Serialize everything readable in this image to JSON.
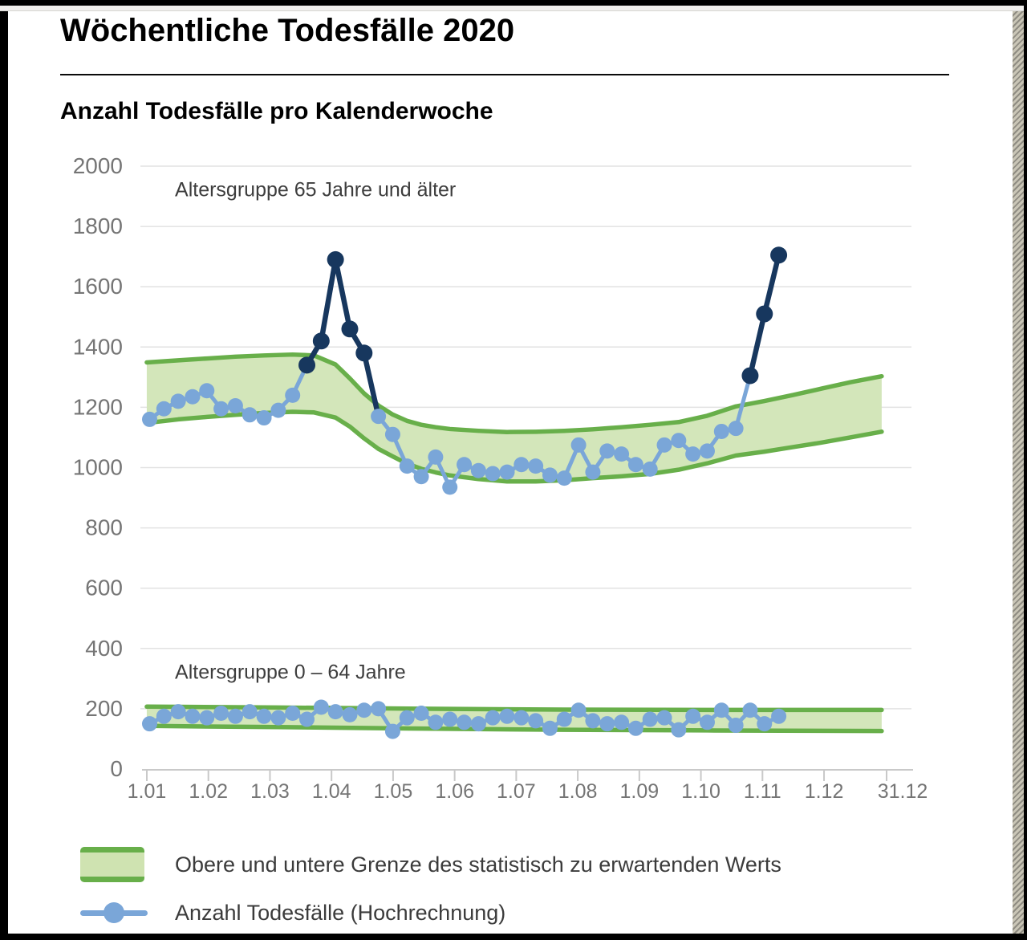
{
  "header": {
    "title": "Wöchentliche Todesfälle 2020",
    "subtitle": "Anzahl Todesfälle pro Kalenderwoche"
  },
  "legend": {
    "items": [
      {
        "swatch": "band",
        "label": "Obere und untere Grenze des statistisch zu erwartenden Werts"
      },
      {
        "swatch": "line-with-dot",
        "label": "Anzahl Todesfälle (Hochrechnung)"
      }
    ]
  },
  "chart_data": {
    "type": "line",
    "title": "Anzahl Todesfälle pro Kalenderwoche",
    "xlabel": "",
    "ylabel": "",
    "ylim": [
      0,
      2000
    ],
    "y_ticks": [
      0,
      200,
      400,
      600,
      800,
      1000,
      1200,
      1400,
      1600,
      1800,
      2000
    ],
    "x_tick_labels": [
      "1.01",
      "1.02",
      "1.03",
      "1.04",
      "1.05",
      "1.06",
      "1.07",
      "1.08",
      "1.09",
      "1.10",
      "1.11",
      "1.12",
      "31.12"
    ],
    "grid": true,
    "legend_position": "bottom",
    "annotations": [
      {
        "text": "Altersgruppe 65 Jahre und älter",
        "week": 2.77,
        "value": 1900
      },
      {
        "text": "Altersgruppe 0 – 64 Jahre",
        "week": 2.77,
        "value": 300
      }
    ],
    "series": [
      {
        "name": "Anzahl Todesfälle (Hochrechnung) – Altersgruppe 65 Jahre und älter",
        "weeks_start": 1,
        "values": [
          1160,
          1195,
          1220,
          1235,
          1255,
          1195,
          1205,
          1175,
          1165,
          1190,
          1240,
          1340,
          1420,
          1690,
          1460,
          1380,
          1170,
          1110,
          1005,
          970,
          1035,
          935,
          1010,
          990,
          980,
          985,
          1010,
          1005,
          975,
          965,
          1075,
          985,
          1055,
          1045,
          1010,
          995,
          1075,
          1090,
          1045,
          1055,
          1120,
          1130,
          1305,
          1510,
          1705
        ],
        "dark_weeks": [
          12,
          13,
          14,
          15,
          16,
          43,
          44,
          45
        ]
      },
      {
        "name": "Anzahl Todesfälle (Hochrechnung) – Altersgruppe 0 – 64 Jahre",
        "weeks_start": 1,
        "values": [
          150,
          175,
          190,
          175,
          170,
          185,
          175,
          190,
          175,
          170,
          185,
          165,
          205,
          190,
          180,
          195,
          200,
          125,
          170,
          185,
          155,
          165,
          155,
          150,
          170,
          175,
          170,
          160,
          135,
          165,
          195,
          160,
          150,
          155,
          135,
          165,
          170,
          130,
          175,
          155,
          195,
          145,
          195,
          150,
          175
        ],
        "dark_weeks": []
      }
    ],
    "bands": [
      {
        "name": "Erwartungsbereich Altersgruppe 65 Jahre und älter",
        "anchors": [
          [
            0.8,
            1148,
            1349
          ],
          [
            3,
            1160,
            1356
          ],
          [
            5,
            1168,
            1362
          ],
          [
            7,
            1175,
            1368
          ],
          [
            9,
            1181,
            1372
          ],
          [
            11,
            1185,
            1375
          ],
          [
            12.5,
            1183,
            1372
          ],
          [
            14,
            1166,
            1342
          ],
          [
            15,
            1136,
            1296
          ],
          [
            16,
            1097,
            1246
          ],
          [
            17,
            1062,
            1206
          ],
          [
            18,
            1037,
            1176
          ],
          [
            19,
            1013,
            1155
          ],
          [
            20,
            996,
            1142
          ],
          [
            21,
            984,
            1134
          ],
          [
            22,
            974,
            1128
          ],
          [
            24,
            962,
            1122
          ],
          [
            26,
            954,
            1118
          ],
          [
            28,
            954,
            1119
          ],
          [
            30,
            958,
            1122
          ],
          [
            32,
            965,
            1127
          ],
          [
            34,
            971,
            1134
          ],
          [
            36,
            979,
            1142
          ],
          [
            38,
            993,
            1151
          ],
          [
            40,
            1014,
            1172
          ],
          [
            42,
            1040,
            1203
          ],
          [
            44,
            1053,
            1221
          ],
          [
            46,
            1068,
            1241
          ],
          [
            48,
            1083,
            1262
          ],
          [
            50,
            1100,
            1283
          ],
          [
            52.2,
            1119,
            1303
          ]
        ]
      },
      {
        "name": "Erwartungsbereich Altersgruppe 0 – 64 Jahre",
        "anchors": [
          [
            0.8,
            143,
            207
          ],
          [
            10,
            139,
            204
          ],
          [
            20,
            134,
            200
          ],
          [
            30,
            130,
            197
          ],
          [
            40,
            128,
            196
          ],
          [
            52.2,
            126,
            196
          ]
        ]
      }
    ],
    "colors": {
      "band_fill": "#d3e6ba",
      "band_stroke": "#68af4a",
      "line_light": "#7aa6d8",
      "line_dark": "#17375e",
      "grid": "#e2e2e2",
      "axis": "#c9c9c9",
      "tick_label": "#757575",
      "annotation": "#3d3d3d"
    }
  }
}
